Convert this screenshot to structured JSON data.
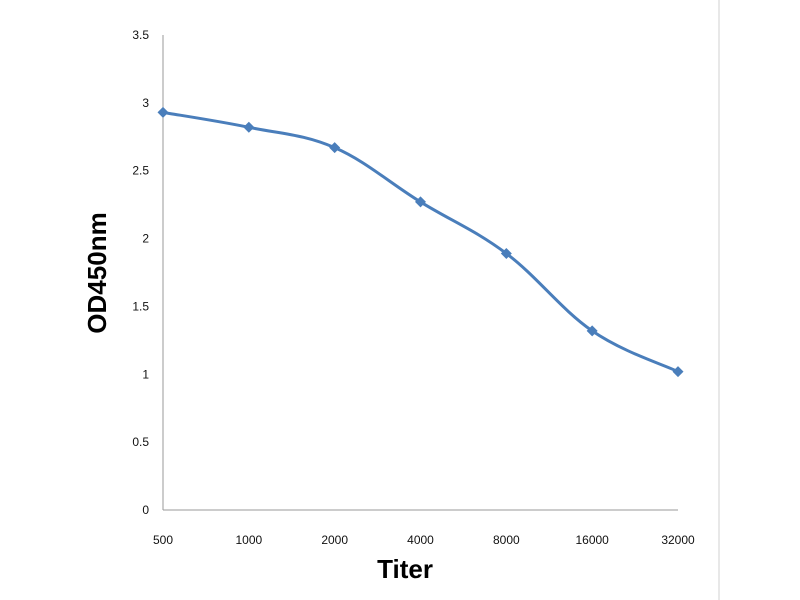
{
  "chart_data": {
    "type": "line",
    "title": "",
    "xlabel": "Titer",
    "ylabel": "OD450nm",
    "categories": [
      "500",
      "1000",
      "2000",
      "4000",
      "8000",
      "16000",
      "32000"
    ],
    "yticks": [
      "0",
      "0.5",
      "1",
      "1.5",
      "2",
      "2.5",
      "3",
      "3.5"
    ],
    "ylim": [
      0,
      3.5
    ],
    "series": [
      {
        "values": [
          2.93,
          2.82,
          2.67,
          2.27,
          1.89,
          1.32,
          1.02
        ]
      }
    ],
    "series_color": "#4A7EBB",
    "marker": "diamond",
    "smooth": true,
    "grid": false,
    "legend": "none"
  }
}
